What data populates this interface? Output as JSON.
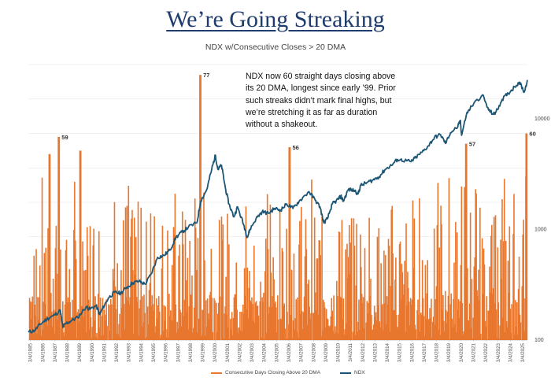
{
  "header": {
    "title": "We’re Going Streaking",
    "subtitle": "NDX w/Consecutive Closes > 20 DMA"
  },
  "note": "NDX now 60 straight days closing above its 20 DMA, longest since early ’99. Prior such streaks didn’t mark final highs, but we’re stretching it as far as duration without a shakeout.",
  "colors": {
    "streak": "#e8772e",
    "ndx": "#1d5675",
    "grid": "#e3e3e3"
  },
  "chart_data": {
    "type": "bar+line",
    "x_tick_labels": [
      "3/4/1985",
      "3/4/1986",
      "3/4/1987",
      "3/4/1988",
      "3/4/1989",
      "3/4/1990",
      "3/4/1991",
      "3/4/1992",
      "3/4/1993",
      "3/4/1994",
      "3/4/1995",
      "3/4/1996",
      "3/4/1997",
      "3/4/1998",
      "3/4/1999",
      "3/4/2000",
      "3/4/2001",
      "3/4/2002",
      "3/4/2003",
      "3/4/2004",
      "3/4/2005",
      "3/4/2006",
      "3/4/2007",
      "3/4/2008",
      "3/4/2009",
      "3/4/2010",
      "3/4/2011",
      "3/4/2012",
      "3/4/2013",
      "3/4/2014",
      "3/4/2015",
      "3/4/2016",
      "3/4/2017",
      "3/4/2018",
      "3/4/2019",
      "3/4/2020",
      "3/4/2021",
      "3/4/2022",
      "3/4/2023",
      "3/4/2024",
      "3/4/2025"
    ],
    "x_range": [
      1985.0,
      2025.55
    ],
    "right_axis": {
      "scale": "log",
      "ticks": [
        100,
        1000,
        10000
      ],
      "range": [
        100,
        31000
      ]
    },
    "left_axis": {
      "range": [
        0,
        80
      ],
      "labels_shown": false
    },
    "grid": true,
    "series": [
      {
        "name": "Consecutive Days Closing Above 20 DMA",
        "type": "bar",
        "peaks": [
          {
            "x": 1986.7,
            "y": 54
          },
          {
            "x": 1987.45,
            "y": 59
          },
          {
            "x": 1989.2,
            "y": 55
          },
          {
            "x": 1998.95,
            "y": 77
          },
          {
            "x": 2006.2,
            "y": 56
          },
          {
            "x": 2020.55,
            "y": 57
          },
          {
            "x": 2025.45,
            "y": 60
          }
        ]
      },
      {
        "name": "NDX",
        "type": "line",
        "points": [
          [
            1985.0,
            118
          ],
          [
            1985.5,
            122
          ],
          [
            1986.0,
            140
          ],
          [
            1986.5,
            155
          ],
          [
            1987.0,
            165
          ],
          [
            1987.6,
            185
          ],
          [
            1987.8,
            130
          ],
          [
            1988.0,
            140
          ],
          [
            1988.5,
            150
          ],
          [
            1989.0,
            160
          ],
          [
            1989.7,
            200
          ],
          [
            1990.0,
            190
          ],
          [
            1990.5,
            205
          ],
          [
            1990.8,
            170
          ],
          [
            1991.0,
            190
          ],
          [
            1991.5,
            240
          ],
          [
            1992.0,
            270
          ],
          [
            1992.5,
            265
          ],
          [
            1993.0,
            300
          ],
          [
            1993.5,
            330
          ],
          [
            1994.0,
            340
          ],
          [
            1994.5,
            320
          ],
          [
            1995.0,
            400
          ],
          [
            1995.5,
            560
          ],
          [
            1996.0,
            580
          ],
          [
            1996.5,
            650
          ],
          [
            1997.0,
            850
          ],
          [
            1997.5,
            950
          ],
          [
            1998.0,
            1050
          ],
          [
            1998.7,
            1150
          ],
          [
            1999.0,
            1800
          ],
          [
            1999.5,
            2300
          ],
          [
            1999.9,
            3500
          ],
          [
            2000.2,
            4700
          ],
          [
            2000.4,
            3500
          ],
          [
            2000.7,
            3800
          ],
          [
            2001.0,
            2400
          ],
          [
            2001.3,
            1700
          ],
          [
            2001.7,
            1300
          ],
          [
            2002.0,
            1600
          ],
          [
            2002.5,
            1100
          ],
          [
            2002.8,
            850
          ],
          [
            2003.0,
            1000
          ],
          [
            2003.5,
            1250
          ],
          [
            2004.0,
            1450
          ],
          [
            2004.5,
            1400
          ],
          [
            2005.0,
            1550
          ],
          [
            2005.5,
            1500
          ],
          [
            2006.0,
            1700
          ],
          [
            2006.5,
            1550
          ],
          [
            2007.0,
            1800
          ],
          [
            2007.8,
            2200
          ],
          [
            2008.3,
            1850
          ],
          [
            2008.7,
            1600
          ],
          [
            2009.0,
            1150
          ],
          [
            2009.3,
            1250
          ],
          [
            2009.7,
            1700
          ],
          [
            2010.0,
            1800
          ],
          [
            2010.4,
            2000
          ],
          [
            2010.6,
            1800
          ],
          [
            2011.0,
            2300
          ],
          [
            2011.5,
            2250
          ],
          [
            2011.8,
            2100
          ],
          [
            2012.0,
            2500
          ],
          [
            2012.5,
            2650
          ],
          [
            2013.0,
            2800
          ],
          [
            2013.5,
            3000
          ],
          [
            2014.0,
            3500
          ],
          [
            2014.5,
            3800
          ],
          [
            2015.0,
            4300
          ],
          [
            2015.6,
            4200
          ],
          [
            2016.1,
            4100
          ],
          [
            2016.5,
            4500
          ],
          [
            2017.0,
            5000
          ],
          [
            2017.5,
            5700
          ],
          [
            2018.0,
            6800
          ],
          [
            2018.5,
            7200
          ],
          [
            2018.9,
            6000
          ],
          [
            2019.3,
            7500
          ],
          [
            2019.9,
            8500
          ],
          [
            2020.1,
            9700
          ],
          [
            2020.2,
            7100
          ],
          [
            2020.6,
            11000
          ],
          [
            2021.0,
            13000
          ],
          [
            2021.9,
            16500
          ],
          [
            2022.4,
            12000
          ],
          [
            2022.8,
            11000
          ],
          [
            2023.0,
            11500
          ],
          [
            2023.5,
            15000
          ],
          [
            2024.0,
            17000
          ],
          [
            2024.5,
            19500
          ],
          [
            2024.9,
            21500
          ],
          [
            2025.3,
            17500
          ],
          [
            2025.55,
            22500
          ]
        ]
      }
    ],
    "annotations": [
      {
        "text": "59",
        "x": 1987.45,
        "y": 59
      },
      {
        "text": "77",
        "x": 1998.95,
        "y": 77
      },
      {
        "text": "56",
        "x": 2006.2,
        "y": 56
      },
      {
        "text": "57",
        "x": 2020.55,
        "y": 57
      },
      {
        "text": "60",
        "x": 2025.45,
        "y": 60
      }
    ]
  }
}
